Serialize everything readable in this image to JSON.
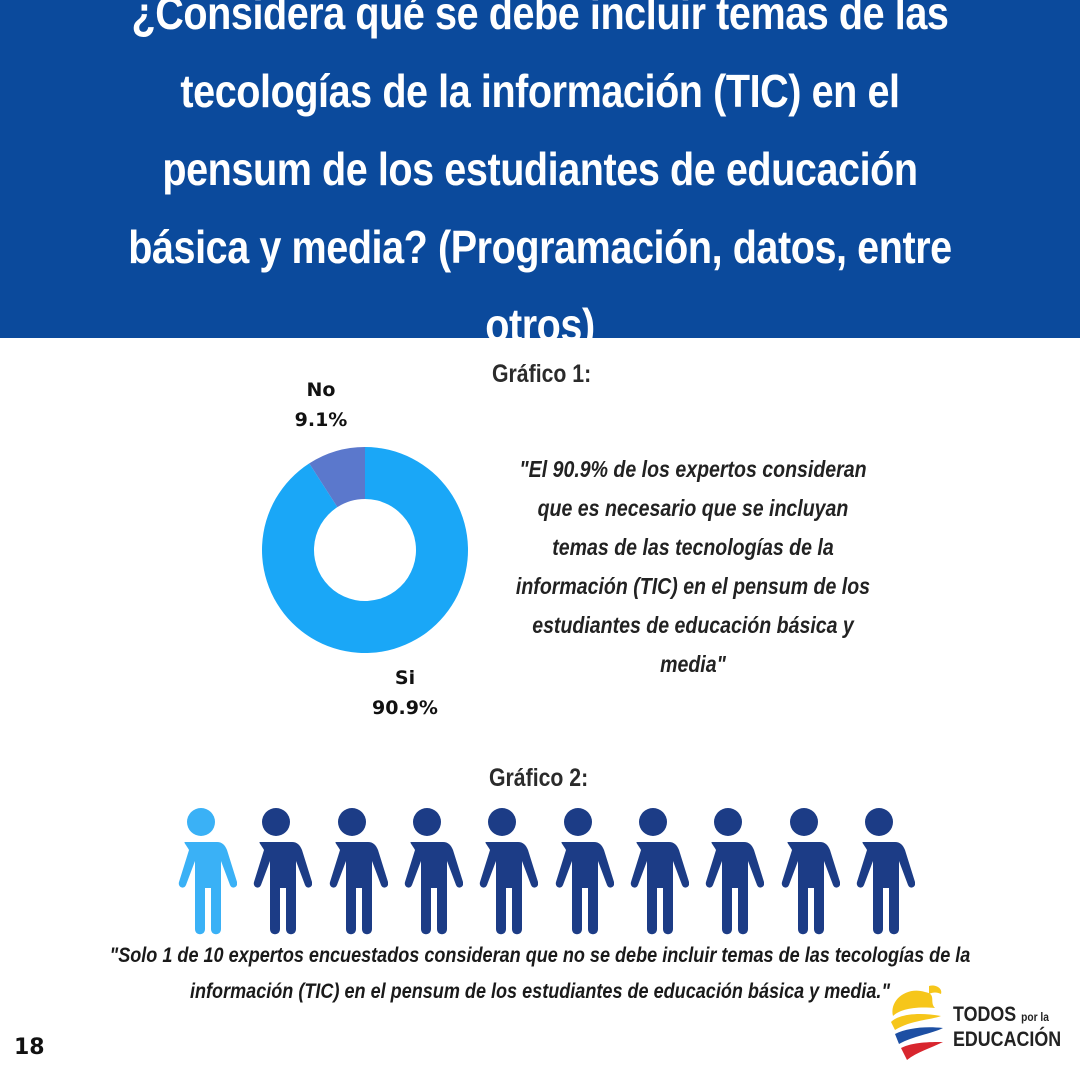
{
  "header": {
    "title": "¿Considera qué se debe incluir temas de las tecologías de la información (TIC) en el pensum de los estudiantes de educación básica y media? (Programación, datos, entre otros)"
  },
  "colors": {
    "header_bg": "#0b4a9c",
    "slice_si": "#1aa7f7",
    "slice_no": "#5b78cc",
    "person_highlight": "#3ab1f6",
    "person_default": "#1c3c86"
  },
  "chart_data": [
    {
      "type": "pie",
      "title": "Gráfico 1:",
      "categories": [
        "Si",
        "No"
      ],
      "values": [
        90.9,
        9.1
      ],
      "value_labels": [
        "90.9%",
        "9.1%"
      ],
      "donut": true
    },
    {
      "type": "pictogram",
      "title": "Gráfico 2:",
      "total": 10,
      "highlighted": 1
    }
  ],
  "grafico1": {
    "title": "Gráfico 1:",
    "quote": "\"El 90.9% de los expertos consideran que es necesario que se incluyan temas de las tecnologías de la información (TIC) en el pensum de los estudiantes de educación básica y media\""
  },
  "grafico2": {
    "title": "Gráfico 2:",
    "quote": "\"Solo 1 de 10 expertos encuestados consideran que no se debe incluir temas de las tecologías de la información (TIC) en el pensum de los estudiantes de educación básica y media.\""
  },
  "footer": {
    "page_number": "18",
    "logo": {
      "line1": "TODOS",
      "line1_small": "por la",
      "line2": "EDUCACIÓN"
    }
  }
}
